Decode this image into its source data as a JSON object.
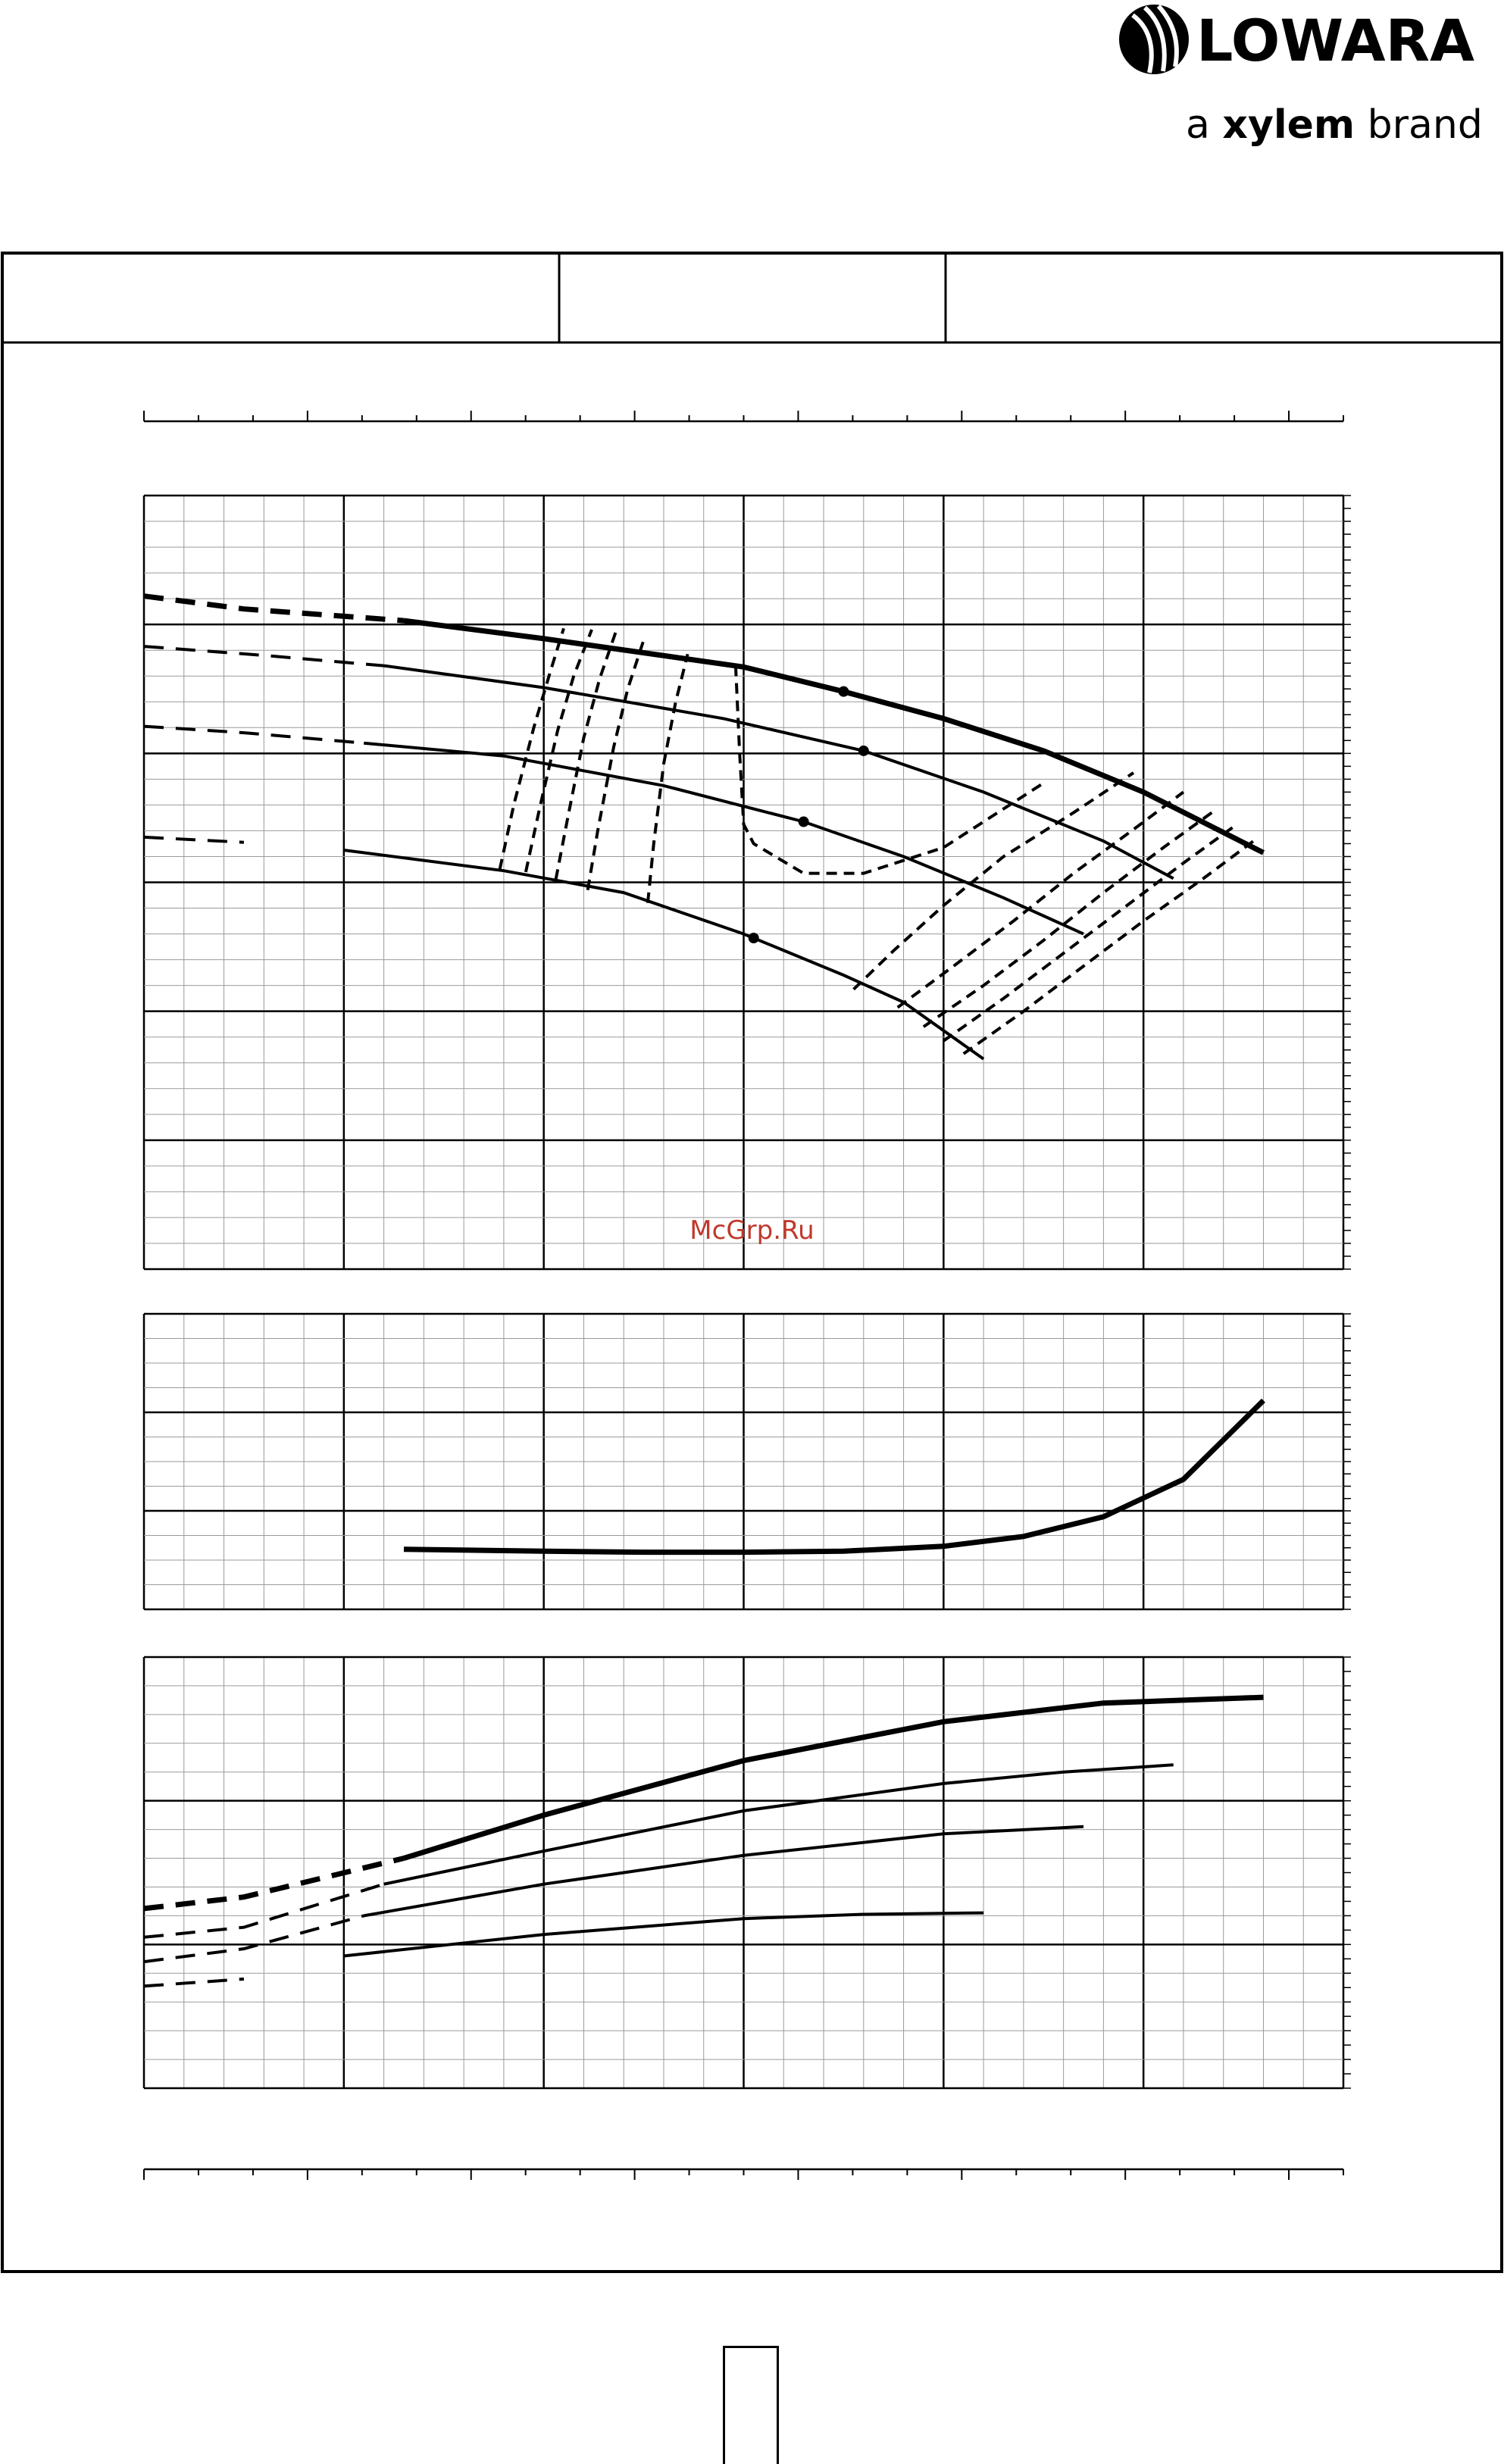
{
  "brand": {
    "name": "LOWARA",
    "tagline_prefix": "a ",
    "tagline_strong": "xylem",
    "tagline_suffix": " brand",
    "icon": "lowara-drop-logo-icon"
  },
  "watermark": "McGrp.Ru",
  "page_number": "",
  "colors": {
    "ink": "#000000",
    "grid_minor": "#9a9a9a",
    "watermark": "#c0392b"
  },
  "chart_data": [
    {
      "type": "line",
      "panel": "head-capacity",
      "title": "",
      "xlabel": "",
      "ylabel": "",
      "xlim": [
        0,
        6
      ],
      "ylim": [
        0,
        6
      ],
      "grid": true,
      "series": [
        {
          "style": "bold",
          "x": [
            0,
            0.5,
            1.3,
            2,
            3,
            3.5,
            4,
            4.5,
            5,
            5.6
          ],
          "y": [
            5.22,
            5.12,
            5.03,
            4.89,
            4.67,
            4.48,
            4.27,
            4.02,
            3.7,
            3.23
          ],
          "dashed_until": 1.3,
          "points": [
            3.5
          ]
        },
        {
          "style": "thin",
          "x": [
            0,
            0.6,
            1.2,
            2,
            2.9,
            3.6,
            4.2,
            4.8,
            5.15
          ],
          "y": [
            4.83,
            4.76,
            4.68,
            4.51,
            4.27,
            4.02,
            3.7,
            3.32,
            3.03
          ],
          "dashed_until": 1.2,
          "points": [
            3.6
          ]
        },
        {
          "style": "thin",
          "x": [
            0,
            0.5,
            1.1,
            1.8,
            2.6,
            3.3,
            3.8,
            4.3,
            4.7
          ],
          "y": [
            4.21,
            4.16,
            4.08,
            3.98,
            3.75,
            3.47,
            3.2,
            2.88,
            2.6
          ],
          "dashed_until": 1.1,
          "points": [
            3.3
          ]
        },
        {
          "style": "thin",
          "x": [
            0,
            0.5,
            1.0,
            1.8,
            2.4,
            3.0,
            3.5,
            3.8,
            4.2
          ],
          "y": [
            3.35,
            3.31,
            3.25,
            3.09,
            2.92,
            2.6,
            2.28,
            2.07,
            1.63
          ],
          "dashed_until": 0.95,
          "points": [
            3.05
          ]
        }
      ],
      "efficiency_iso": [
        {
          "x": [
            1.78,
            1.85,
            1.95,
            2.03,
            2.1
          ],
          "y": [
            3.1,
            3.6,
            4.2,
            4.62,
            4.97
          ]
        },
        {
          "x": [
            1.91,
            1.98,
            2.07,
            2.15,
            2.24
          ],
          "y": [
            3.08,
            3.58,
            4.18,
            4.6,
            4.96
          ]
        },
        {
          "x": [
            2.06,
            2.12,
            2.2,
            2.28,
            2.36
          ],
          "y": [
            3.02,
            3.5,
            4.12,
            4.58,
            4.94
          ]
        },
        {
          "x": [
            2.22,
            2.27,
            2.35,
            2.42,
            2.5
          ],
          "y": [
            2.94,
            3.4,
            4.05,
            4.5,
            4.88
          ]
        },
        {
          "x": [
            2.52,
            2.55,
            2.6,
            2.66,
            2.72
          ],
          "y": [
            2.84,
            3.3,
            3.92,
            4.4,
            4.77
          ]
        },
        {
          "x": [
            2.96,
            2.98,
            3.0,
            3.05,
            3.3,
            3.6,
            4.0,
            4.5
          ],
          "y": [
            4.68,
            4.0,
            3.45,
            3.3,
            3.07,
            3.07,
            3.27,
            3.77
          ]
        },
        {
          "x": [
            3.55,
            3.75,
            4.0,
            4.3,
            4.65,
            4.95
          ],
          "y": [
            2.17,
            2.47,
            2.82,
            3.2,
            3.54,
            3.85
          ]
        },
        {
          "x": [
            3.77,
            4.05,
            4.35,
            4.65,
            4.95,
            5.2
          ],
          "y": [
            2.03,
            2.35,
            2.7,
            3.07,
            3.41,
            3.7
          ]
        },
        {
          "x": [
            3.9,
            4.2,
            4.5,
            4.8,
            5.1,
            5.35
          ],
          "y": [
            1.88,
            2.2,
            2.55,
            2.92,
            3.27,
            3.55
          ]
        },
        {
          "x": [
            4.0,
            4.3,
            4.6,
            4.9,
            5.2,
            5.45
          ],
          "y": [
            1.77,
            2.1,
            2.45,
            2.8,
            3.15,
            3.43
          ]
        },
        {
          "x": [
            4.1,
            4.4,
            4.7,
            5.0,
            5.3,
            5.55
          ],
          "y": [
            1.67,
            2.0,
            2.35,
            2.7,
            3.03,
            3.32
          ]
        }
      ]
    },
    {
      "type": "line",
      "panel": "npsh",
      "title": "",
      "xlabel": "",
      "ylabel": "",
      "xlim": [
        0,
        6
      ],
      "ylim": [
        0,
        3
      ],
      "grid": true,
      "series": [
        {
          "style": "bold",
          "x": [
            1.3,
            2,
            2.5,
            3,
            3.5,
            4,
            4.4,
            4.8,
            5.2,
            5.6
          ],
          "y": [
            0.61,
            0.59,
            0.58,
            0.58,
            0.59,
            0.64,
            0.74,
            0.94,
            1.32,
            2.12
          ]
        }
      ]
    },
    {
      "type": "line",
      "panel": "power",
      "title": "",
      "xlabel": "",
      "ylabel": "",
      "xlim": [
        0,
        6
      ],
      "ylim": [
        0,
        3
      ],
      "grid": true,
      "series": [
        {
          "style": "bold",
          "x": [
            0,
            0.5,
            1.3,
            2,
            3,
            4,
            4.8,
            5.6
          ],
          "y": [
            1.25,
            1.33,
            1.6,
            1.9,
            2.28,
            2.55,
            2.68,
            2.72
          ],
          "dashed_until": 1.3
        },
        {
          "style": "thin",
          "x": [
            0,
            0.5,
            1.2,
            2,
            3,
            4,
            4.6,
            5.15
          ],
          "y": [
            1.05,
            1.12,
            1.42,
            1.65,
            1.93,
            2.12,
            2.2,
            2.25
          ],
          "dashed_until": 1.2
        },
        {
          "style": "thin",
          "x": [
            0,
            0.5,
            1.1,
            2,
            3,
            4,
            4.7
          ],
          "y": [
            0.88,
            0.97,
            1.2,
            1.42,
            1.62,
            1.77,
            1.82
          ],
          "dashed_until": 1.1
        },
        {
          "style": "thin",
          "x": [
            0,
            0.5,
            1.0,
            2,
            3,
            3.6,
            4.2
          ],
          "y": [
            0.71,
            0.76,
            0.92,
            1.07,
            1.18,
            1.21,
            1.22
          ],
          "dashed_until": 0.95
        }
      ]
    }
  ]
}
